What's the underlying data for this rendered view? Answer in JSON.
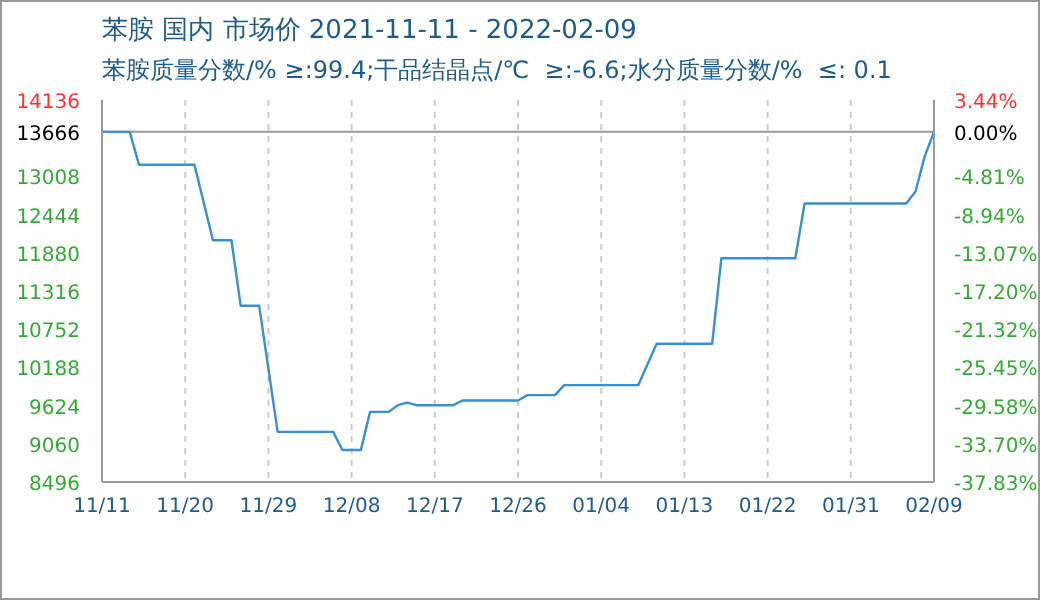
{
  "chart_data": {
    "type": "line",
    "title": "苯胺 国内 市场价 2021-11-11 - 2022-02-09",
    "subtitle": "苯胺质量分数/% ≥:99.4;干品结晶点/℃  ≥:-6.6;水分质量分数/%  ≤: 0.1",
    "x": [
      "2021-11-11",
      "2021-11-14",
      "2021-11-15",
      "2021-11-21",
      "2021-11-23",
      "2021-11-25",
      "2021-11-26",
      "2021-11-28",
      "2021-11-30",
      "2021-12-06",
      "2021-12-07",
      "2021-12-09",
      "2021-12-10",
      "2021-12-12",
      "2021-12-13",
      "2021-12-14",
      "2021-12-15",
      "2021-12-19",
      "2021-12-20",
      "2021-12-26",
      "2021-12-27",
      "2021-12-30",
      "2021-12-31",
      "2022-01-08",
      "2022-01-10",
      "2022-01-16",
      "2022-01-17",
      "2022-01-25",
      "2022-01-26",
      "2022-02-06",
      "2022-02-07",
      "2022-02-08",
      "2022-02-09"
    ],
    "series": [
      {
        "color": "#3a8fd0",
        "values": [
          13666,
          13666,
          13180,
          13180,
          12065,
          12065,
          11099,
          11099,
          9236,
          9236,
          8969,
          8969,
          9531,
          9531,
          9630,
          9669,
          9630,
          9630,
          9699,
          9699,
          9778,
          9778,
          9926,
          9926,
          10537,
          10537,
          11799,
          11799,
          12608,
          12608,
          12785,
          13308,
          13666
        ]
      }
    ],
    "xlim": [
      "2021-11-11",
      "2022-02-09"
    ],
    "xticks": [
      {
        "value": "2021-11-11",
        "label": "11/11"
      },
      {
        "value": "2021-11-20",
        "label": "11/20"
      },
      {
        "value": "2021-11-29",
        "label": "11/29"
      },
      {
        "value": "2021-12-08",
        "label": "12/08"
      },
      {
        "value": "2021-12-17",
        "label": "12/17"
      },
      {
        "value": "2021-12-26",
        "label": "12/26"
      },
      {
        "value": "2022-01-04",
        "label": "01/04"
      },
      {
        "value": "2022-01-13",
        "label": "01/13"
      },
      {
        "value": "2022-01-22",
        "label": "01/22"
      },
      {
        "value": "2022-01-31",
        "label": "01/31"
      },
      {
        "value": "2022-02-09",
        "label": "02/09"
      }
    ],
    "ylim": [
      8496,
      14136
    ],
    "yticks": [
      8496,
      9060,
      9624,
      10188,
      10752,
      11316,
      11880,
      12444,
      13008,
      13666,
      14136
    ],
    "y2lim": [
      -37.83,
      3.44
    ],
    "y2ticks": [
      {
        "value": -37.83,
        "label": "-37.83%"
      },
      {
        "value": -33.7,
        "label": "-33.70%"
      },
      {
        "value": -29.58,
        "label": "-29.58%"
      },
      {
        "value": -25.45,
        "label": "-25.45%"
      },
      {
        "value": -21.32,
        "label": "-21.32%"
      },
      {
        "value": -17.2,
        "label": "-17.20%"
      },
      {
        "value": -13.07,
        "label": "-13.07%"
      },
      {
        "value": -8.94,
        "label": "-8.94%"
      },
      {
        "value": -4.81,
        "label": "-4.81%"
      },
      {
        "value": 0,
        "label": "0.00%"
      },
      {
        "value": 3.44,
        "label": "3.44%"
      }
    ],
    "ref_lines": [
      {
        "axis": "y",
        "value": 13666,
        "color": "#999999"
      }
    ],
    "grid": true,
    "marker": "none",
    "line_style": "solid"
  }
}
